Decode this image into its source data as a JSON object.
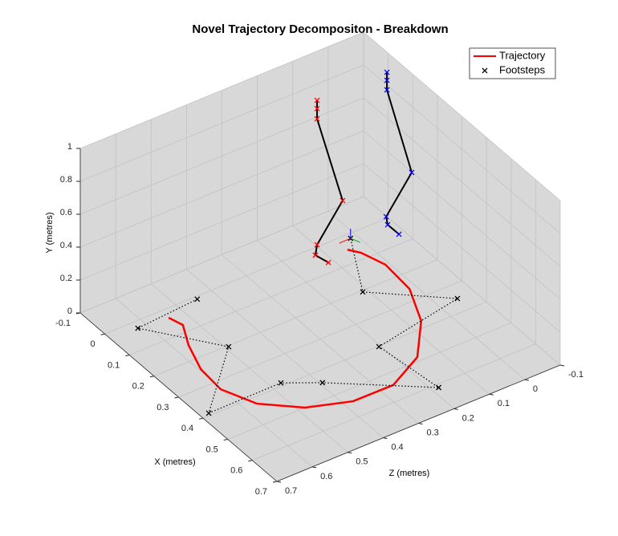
{
  "chart_data": {
    "type": "line3d",
    "title": "Novel Trajectory Decompositon - Breakdown",
    "xlabel": "X (metres)",
    "ylabel": "Y (metres)",
    "zlabel": "Z (metres)",
    "xlim": [
      -0.1,
      0.7
    ],
    "xticks": [
      -0.1,
      0,
      0.1,
      0.2,
      0.3,
      0.4,
      0.5,
      0.6,
      0.7
    ],
    "ylim": [
      0,
      1
    ],
    "yticks": [
      0,
      0.2,
      0.4,
      0.6,
      0.8,
      1
    ],
    "zlim": [
      -0.1,
      0.7
    ],
    "zticks": [
      -0.1,
      0,
      0.1,
      0.2,
      0.3,
      0.4,
      0.5,
      0.6,
      0.7
    ],
    "grid": true,
    "legend_position": "top-right",
    "series": [
      {
        "name": "Trajectory",
        "color": "#ff0000",
        "x": [
          0.032,
          0.074,
          0.146,
          0.239,
          0.33,
          0.424,
          0.5,
          0.543,
          0.544,
          0.486,
          0.375,
          0.257,
          0.147,
          0.077,
          0.049
        ],
        "y": [
          0,
          0,
          0,
          0,
          0,
          0,
          0,
          0,
          0,
          0,
          0,
          0,
          0,
          0,
          0
        ],
        "z": [
          0.542,
          0.531,
          0.565,
          0.595,
          0.602,
          0.565,
          0.482,
          0.376,
          0.263,
          0.155,
          0.067,
          0.018,
          0.01,
          0.03,
          0.049
        ]
      },
      {
        "name": "Footsteps",
        "color": "#000000",
        "marker": "x",
        "line": "dotted",
        "x": [
          0.01,
          0.025,
          0.204,
          0.391,
          0.389,
          0.443,
          0.612,
          0.402,
          0.351,
          0.205,
          0.017
        ],
        "y": [
          0,
          0,
          0,
          0,
          0,
          0,
          0,
          0,
          0,
          0,
          0
        ],
        "z": [
          0.446,
          0.624,
          0.492,
          0.678,
          0.473,
          0.393,
          0.182,
          0.205,
          -0.052,
          0.114,
          0.018
        ]
      },
      {
        "color": "#000000",
        "marker": "x",
        "marker_color": "#ff0000",
        "line": "solid",
        "x": [
          0.071,
          0.071,
          0.071,
          0.175,
          0.071,
          0.064,
          0.117
        ],
        "y": [
          1.025,
          0.975,
          0.913,
          0.549,
          0.147,
          0.075,
          0.098
        ],
        "z": [
          0.15,
          0.15,
          0.15,
          0.15,
          0.15,
          0.15,
          0.15
        ]
      },
      {
        "color": "#000000",
        "marker": "x",
        "marker_color": "#0000ff",
        "line": "solid",
        "x": [
          0.067,
          0.067,
          0.067,
          0.168,
          0.064,
          0.07,
          0.116
        ],
        "y": [
          1.014,
          0.965,
          0.907,
          0.534,
          0.132,
          0.091,
          0.092
        ],
        "z": [
          -0.05,
          -0.05,
          -0.05,
          -0.05,
          -0.05,
          -0.05,
          -0.05
        ]
      }
    ]
  }
}
